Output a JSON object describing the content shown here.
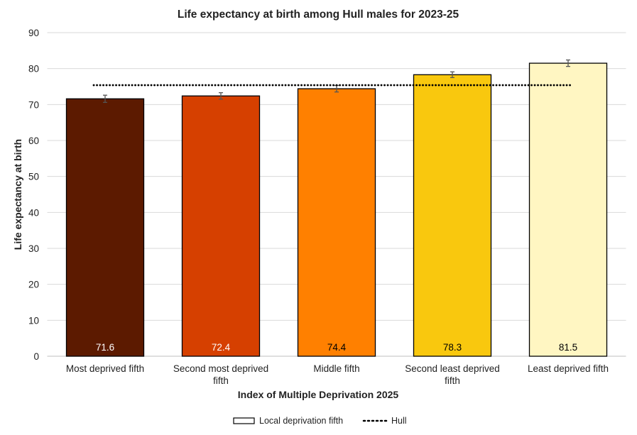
{
  "chart_data": {
    "type": "bar",
    "title": "Life expectancy at birth among Hull males for 2023-25",
    "xlabel": "Index of Multiple Deprivation 2025",
    "ylabel": "Life expectancy at birth",
    "ylim": [
      0,
      90
    ],
    "yticks": [
      0,
      10,
      20,
      30,
      40,
      50,
      60,
      70,
      80,
      90
    ],
    "grid": true,
    "legend_position": "bottom",
    "categories": [
      [
        "Most deprived fifth"
      ],
      [
        "Second most deprived",
        "fifth"
      ],
      [
        "Middle fifth"
      ],
      [
        "Second least deprived",
        "fifth"
      ],
      [
        "Least deprived fifth"
      ]
    ],
    "series": [
      {
        "name": "Local deprivation fifth",
        "values": [
          71.6,
          72.4,
          74.4,
          78.3,
          81.5
        ],
        "data_labels": [
          "71.6",
          "72.4",
          "74.4",
          "78.3",
          "81.5"
        ],
        "ci_lower": [
          70.6,
          71.5,
          73.5,
          77.5,
          80.6
        ],
        "ci_upper": [
          72.6,
          73.3,
          75.3,
          79.1,
          82.4
        ],
        "colors": [
          "#5C1A00",
          "#D64000",
          "#FF8000",
          "#F9C80E",
          "#FFF6C2"
        ],
        "label_colors": [
          "#ffffff",
          "#ffffff",
          "#000000",
          "#000000",
          "#000000"
        ]
      },
      {
        "name": "Hull",
        "type": "line",
        "style": "dotted",
        "value": 75.4,
        "color": "#000000"
      }
    ]
  }
}
